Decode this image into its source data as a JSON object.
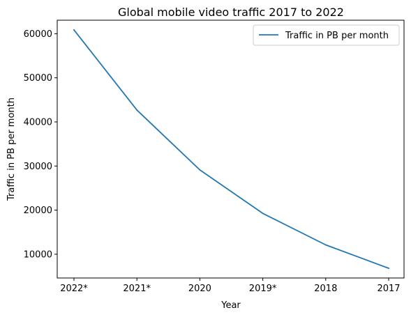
{
  "chart_data": {
    "type": "line",
    "title": "Global mobile video traffic 2017 to 2022",
    "xlabel": "Year",
    "ylabel": "Traffic in PB per month",
    "categories": [
      "2022*",
      "2021*",
      "2020",
      "2019*",
      "2018",
      "2017"
    ],
    "series": [
      {
        "name": "Traffic in PB per month",
        "values": [
          60857,
          42690,
          29121,
          19265,
          12120,
          6818
        ],
        "color": "#1f77b4"
      }
    ],
    "yticks": [
      10000,
      20000,
      30000,
      40000,
      50000,
      60000
    ],
    "ylim": [
      4616.05,
      63058.95
    ],
    "legend_position": "top-right",
    "grid": false
  }
}
